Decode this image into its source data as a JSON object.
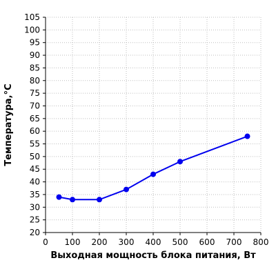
{
  "chart_data": {
    "type": "line",
    "xlabel": "Выходная мощность блока питания, Вт",
    "ylabel": "Температура,°С",
    "xlim": [
      0,
      800
    ],
    "ylim": [
      20,
      105
    ],
    "x_ticks": [
      0,
      100,
      200,
      300,
      400,
      500,
      600,
      700,
      800
    ],
    "y_ticks": [
      20,
      25,
      30,
      35,
      40,
      45,
      50,
      55,
      60,
      65,
      70,
      75,
      80,
      85,
      90,
      95,
      100,
      105
    ],
    "grid": true,
    "series": [
      {
        "x": [
          50,
          100,
          200,
          300,
          400,
          500,
          750
        ],
        "y": [
          34,
          33,
          33,
          37,
          43,
          48,
          58
        ],
        "color": "#0000ee"
      }
    ]
  }
}
